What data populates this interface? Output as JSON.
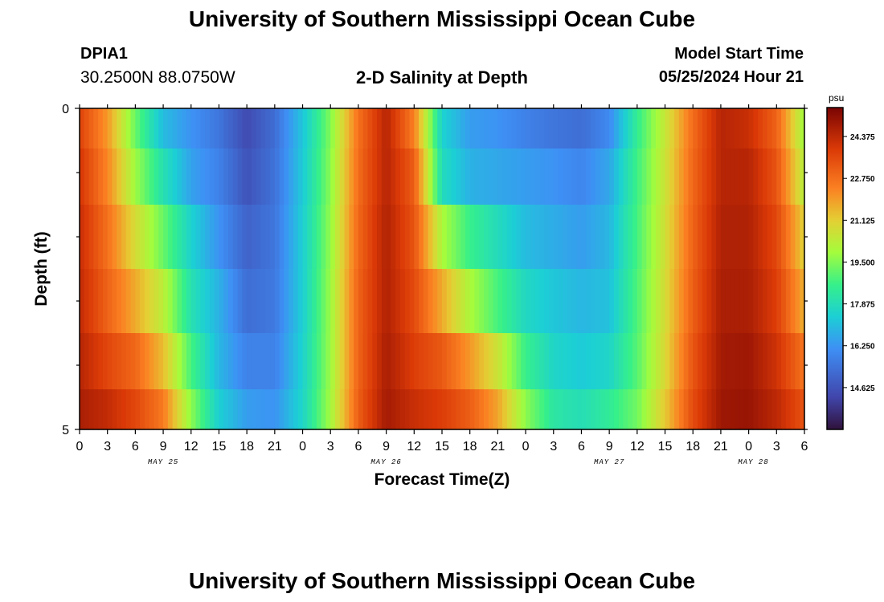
{
  "header": {
    "title": "University of Southern Mississippi Ocean Cube",
    "station_id": "DPIA1",
    "station_coords": "30.2500N  88.0750W",
    "subtitle": "2-D Salinity at Depth",
    "model_start_label": "Model Start Time",
    "model_start_value": "05/25/2024 Hour 21"
  },
  "footer": {
    "title": "University of Southern Mississippi Ocean Cube"
  },
  "chart_data": {
    "type": "heatmap",
    "title": "2-D Salinity at Depth",
    "xlabel": "Forecast Time(Z)",
    "ylabel": "Depth (ft)",
    "x_tick_labels": [
      "0",
      "3",
      "6",
      "9",
      "12",
      "15",
      "18",
      "21",
      "0",
      "3",
      "6",
      "9",
      "12",
      "15",
      "18",
      "21",
      "0",
      "3",
      "6",
      "9",
      "12",
      "15",
      "18",
      "21",
      "0",
      "3",
      "6"
    ],
    "date_labels": [
      "MAY 25",
      "MAY 26",
      "MAY 27",
      "MAY 28"
    ],
    "y_tick_labels": [
      "0",
      "5"
    ],
    "ylim": [
      0,
      5
    ],
    "x_hours": [
      0,
      3,
      6,
      9,
      12,
      15,
      18,
      21,
      24,
      27,
      30,
      33,
      36,
      39,
      42,
      45,
      48,
      51,
      54,
      57,
      60,
      63,
      66,
      69,
      72,
      75,
      78
    ],
    "depth_layers_ft": [
      0.25,
      1.0,
      2.0,
      3.0,
      4.0,
      4.75
    ],
    "salinity_psu": [
      [
        23.7,
        22.0,
        19.2,
        17.0,
        16.2,
        15.5,
        14.4,
        15.3,
        17.2,
        19.5,
        22.7,
        24.5,
        22.4,
        17.5,
        16.4,
        16.2,
        15.8,
        15.5,
        15.3,
        16.0,
        18.5,
        20.5,
        22.8,
        24.5,
        24.2,
        23.0,
        19.8
      ],
      [
        24.0,
        22.3,
        19.8,
        18.0,
        16.5,
        15.8,
        14.6,
        15.4,
        17.3,
        19.6,
        22.8,
        24.5,
        23.1,
        17.8,
        16.8,
        16.6,
        16.4,
        16.2,
        15.9,
        16.6,
        18.7,
        20.6,
        22.9,
        24.5,
        24.5,
        23.3,
        20.2
      ],
      [
        24.2,
        22.7,
        20.8,
        19.2,
        17.5,
        16.2,
        15.0,
        15.5,
        17.4,
        19.7,
        22.9,
        24.6,
        23.3,
        20.0,
        18.6,
        17.8,
        17.0,
        16.7,
        16.4,
        16.9,
        18.8,
        20.7,
        23.0,
        24.6,
        24.6,
        23.6,
        21.0
      ],
      [
        24.3,
        23.0,
        21.7,
        20.3,
        18.0,
        16.8,
        15.3,
        15.6,
        17.4,
        19.8,
        23.0,
        24.6,
        23.5,
        21.7,
        20.0,
        18.8,
        17.7,
        17.2,
        16.9,
        17.1,
        18.9,
        20.8,
        23.1,
        24.7,
        24.7,
        23.8,
        21.6
      ],
      [
        24.5,
        23.6,
        22.9,
        21.4,
        18.8,
        16.9,
        15.8,
        15.8,
        17.5,
        19.8,
        23.0,
        24.7,
        23.8,
        23.2,
        22.0,
        20.6,
        18.6,
        17.6,
        17.3,
        17.6,
        19.0,
        20.9,
        23.3,
        24.8,
        24.9,
        24.1,
        22.6
      ],
      [
        24.7,
        24.3,
        23.6,
        22.5,
        19.6,
        17.4,
        16.4,
        16.2,
        17.6,
        19.9,
        23.1,
        24.8,
        24.2,
        23.8,
        23.1,
        21.8,
        19.6,
        18.2,
        17.9,
        18.4,
        19.3,
        21.2,
        23.5,
        24.9,
        25.0,
        24.4,
        23.3
      ]
    ],
    "colorbar": {
      "unit": "psu",
      "range": [
        13.0,
        25.5
      ],
      "tick_labels": [
        "24.375",
        "22.750",
        "21.125",
        "19.500",
        "17.875",
        "16.250",
        "14.625"
      ]
    }
  }
}
